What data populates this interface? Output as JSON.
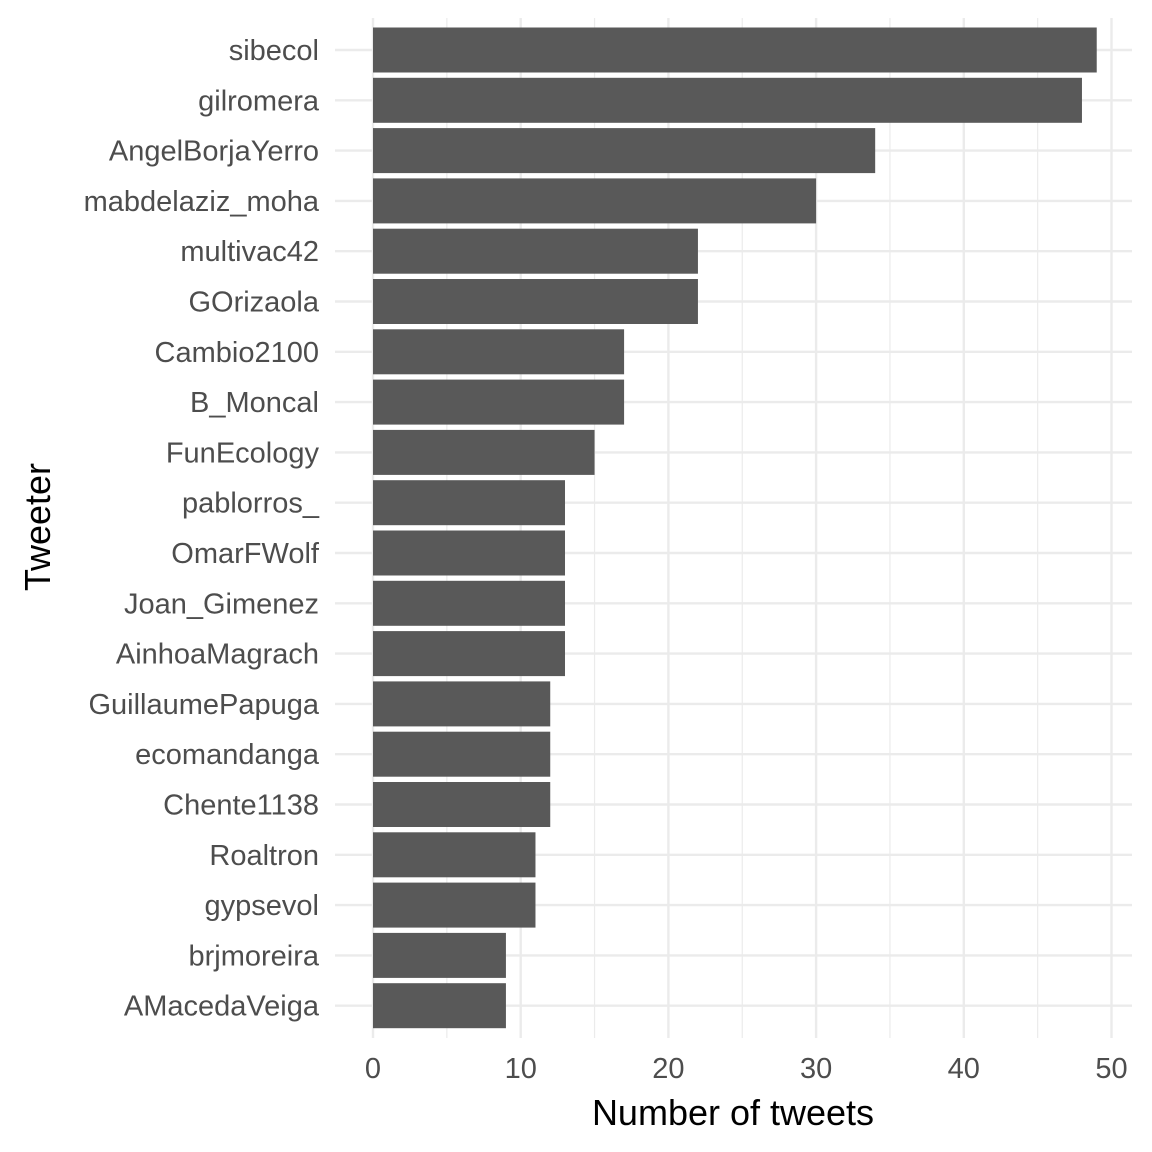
{
  "chart_data": {
    "type": "bar",
    "orientation": "horizontal",
    "title": "",
    "xlabel": "Number of tweets",
    "ylabel": "Tweeter",
    "xlim": [
      0,
      51
    ],
    "x_ticks": [
      0,
      10,
      20,
      30,
      40,
      50
    ],
    "grid": true,
    "bar_color": "#595959",
    "grid_color": "#ebebeb",
    "categories": [
      "sibecol",
      "gilromera",
      "AngelBorjaYerro",
      "mabdelaziz_moha",
      "multivac42",
      "GOrizaola",
      "Cambio2100",
      "B_Moncal",
      "FunEcology",
      "pablorros_",
      "OmarFWolf",
      "Joan_Gimenez",
      "AinhoaMagrach",
      "GuillaumePapuga",
      "ecomandanga",
      "Chente1138",
      "Roaltron",
      "gypsevol",
      "brjmoreira",
      "AMacedaVeiga"
    ],
    "values": [
      49,
      48,
      34,
      30,
      22,
      22,
      17,
      17,
      15,
      13,
      13,
      13,
      13,
      12,
      12,
      12,
      11,
      11,
      9,
      9
    ]
  }
}
